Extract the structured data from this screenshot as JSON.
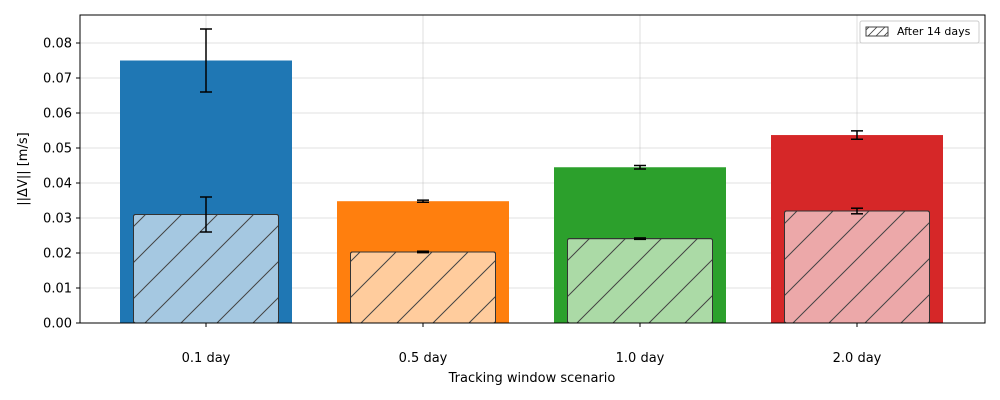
{
  "chart_data": {
    "type": "bar",
    "title": "",
    "xlabel": "Tracking window scenario",
    "ylabel": "||ΔV|| [m/s]",
    "ylim": [
      0,
      0.088
    ],
    "yticks": [
      0.0,
      0.01,
      0.02,
      0.03,
      0.04,
      0.05,
      0.06,
      0.07,
      0.08
    ],
    "ytick_labels": [
      "0.00",
      "0.01",
      "0.02",
      "0.03",
      "0.04",
      "0.05",
      "0.06",
      "0.07",
      "0.08"
    ],
    "categories": [
      "0.1 day",
      "0.5 day",
      "1.0 day",
      "2.0 day"
    ],
    "grid": true,
    "legend_position": "top-right",
    "series": [
      {
        "style": "solid",
        "values": [
          0.075,
          0.0348,
          0.0445,
          0.0537
        ],
        "errors": [
          0.009,
          0.0003,
          0.0005,
          0.0012
        ],
        "colors": [
          "#1f77b4",
          "#ff7f0e",
          "#2ca02c",
          "#d62728"
        ]
      },
      {
        "name": "After 14 days",
        "style": "hatched",
        "values": [
          0.031,
          0.0203,
          0.0241,
          0.032
        ],
        "errors": [
          0.005,
          0.0002,
          0.0002,
          0.0008
        ],
        "colors": [
          "#a5c8e1",
          "#ffcc9d",
          "#abdaa6",
          "#eca8a9"
        ]
      }
    ]
  }
}
